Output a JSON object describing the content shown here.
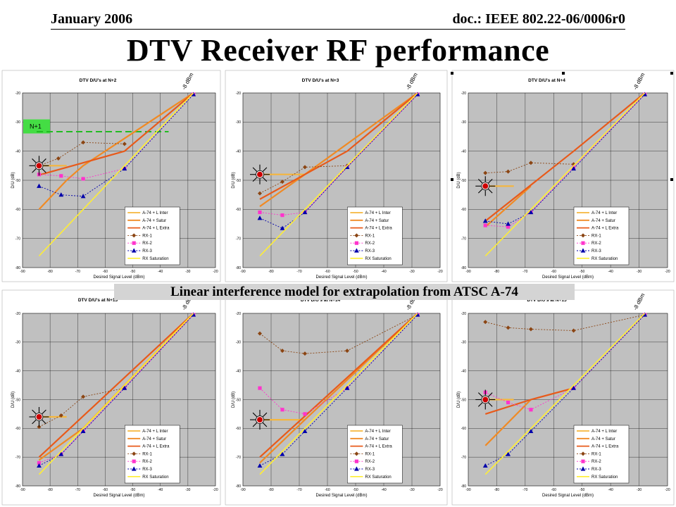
{
  "header": {
    "date": "January 2006",
    "doc": "doc.: IEEE 802.22-06/0006r0"
  },
  "slide_title": "DTV Receiver RF performance",
  "banner": "Linear interference model for extrapolation from ATSC A-74",
  "colors": {
    "A-74 + L Inter": "#f5b63d",
    "A-74 + Satur": "#f08a24",
    "A-74 + L Extra": "#e85a1a",
    "RX-1": "#8b4513",
    "RX-2": "#ff33cc",
    "RX-3": "#0000aa",
    "RX Saturation": "#ffee33",
    "plot_bg": "#c0c0c0"
  },
  "chart_data": [
    {
      "type": "line",
      "title": "DTV D/U's at N+2",
      "xlabel": "Desired Signal Level (dBm)",
      "ylabel": "D/U (dB)",
      "xlim": [
        -90,
        -20
      ],
      "ylim": [
        -80,
        -20
      ],
      "xticks": [
        -90,
        -80,
        -70,
        -60,
        -50,
        -40,
        -30,
        -20
      ],
      "yticks": [
        -20,
        -30,
        -40,
        -50,
        -60,
        -70,
        -80
      ],
      "grid": true,
      "legend": "bottom-right",
      "point_label": "-8 dBm",
      "extra_label": "N+1",
      "series": [
        {
          "name": "A-74 + L Inter",
          "x": [
            -84,
            -74
          ],
          "y": [
            -45,
            -45
          ]
        },
        {
          "name": "A-74 + Satur",
          "x": [
            -84,
            -74,
            -68,
            -28
          ],
          "y": [
            -60,
            -50,
            -45,
            -20
          ]
        },
        {
          "name": "A-74 + L Extra",
          "x": [
            -84,
            -68,
            -53,
            -28
          ],
          "y": [
            -48.2,
            -44,
            -40,
            -20
          ]
        },
        {
          "name": "RX-1",
          "x": [
            -84,
            -77,
            -68,
            -53
          ],
          "y": [
            -45,
            -42.5,
            -37,
            -37.5
          ]
        },
        {
          "name": "RX-2",
          "x": [
            -84,
            -76,
            -68,
            -53,
            -28
          ],
          "y": [
            -48,
            -48.5,
            -49.5,
            -46,
            -20.5
          ]
        },
        {
          "name": "RX-3",
          "x": [
            -84,
            -76,
            -68,
            -53,
            -28
          ],
          "y": [
            -52,
            -55,
            -55.5,
            -46,
            -20.5
          ]
        },
        {
          "name": "RX Saturation",
          "x": [
            -84,
            -28
          ],
          "y": [
            -76,
            -20
          ]
        }
      ]
    },
    {
      "type": "line",
      "title": "DTV D/U's at N+3",
      "xlabel": "Desired Signal Level (dBm)",
      "ylabel": "D/U (dB)",
      "xlim": [
        -90,
        -20
      ],
      "ylim": [
        -80,
        -20
      ],
      "xticks": [
        -90,
        -80,
        -70,
        -60,
        -50,
        -40,
        -30,
        -20
      ],
      "yticks": [
        -20,
        -30,
        -40,
        -50,
        -60,
        -70,
        -80
      ],
      "grid": true,
      "legend": "bottom-right",
      "point_label": "-8 dBm",
      "series": [
        {
          "name": "A-74 + L Inter",
          "x": [
            -84,
            -68
          ],
          "y": [
            -48,
            -48
          ]
        },
        {
          "name": "A-74 + Satur",
          "x": [
            -84,
            -68,
            -28
          ],
          "y": [
            -59,
            -48,
            -20
          ]
        },
        {
          "name": "A-74 + L Extra",
          "x": [
            -84,
            -68,
            -53,
            -28
          ],
          "y": [
            -56.5,
            -48,
            -40,
            -20
          ]
        },
        {
          "name": "RX-1",
          "x": [
            -84,
            -76,
            -68,
            -53
          ],
          "y": [
            -54.5,
            -50.5,
            -45.5,
            -45
          ]
        },
        {
          "name": "RX-2",
          "x": [
            -84,
            -76,
            -68,
            -53,
            -28
          ],
          "y": [
            -61,
            -62,
            -61,
            -45.5,
            -20.5
          ]
        },
        {
          "name": "RX-3",
          "x": [
            -84,
            -76,
            -68,
            -53,
            -28
          ],
          "y": [
            -63,
            -66.5,
            -61,
            -45.5,
            -20.5
          ]
        },
        {
          "name": "RX Saturation",
          "x": [
            -84,
            -28
          ],
          "y": [
            -76,
            -20
          ]
        }
      ]
    },
    {
      "type": "line",
      "title": "DTV D/U's at N+4",
      "xlabel": "Desired Signal Level (dBm)",
      "ylabel": "D/U (dB)",
      "xlim": [
        -90,
        -20
      ],
      "ylim": [
        -80,
        -20
      ],
      "xticks": [
        -90,
        -80,
        -70,
        -60,
        -50,
        -40,
        -30,
        -20
      ],
      "yticks": [
        -20,
        -30,
        -40,
        -50,
        -60,
        -70,
        -80
      ],
      "grid": true,
      "legend": "bottom-right",
      "point_label": "-8 dBm",
      "series": [
        {
          "name": "A-74 + L Inter",
          "x": [
            -84,
            -74
          ],
          "y": [
            -52,
            -52
          ]
        },
        {
          "name": "A-74 + Satur",
          "x": [
            -84,
            -68
          ],
          "y": [
            -66,
            -52
          ]
        },
        {
          "name": "A-74 + L Extra",
          "x": [
            -84,
            -53,
            -28
          ],
          "y": [
            -64,
            -40,
            -20
          ]
        },
        {
          "name": "RX-1",
          "x": [
            -84,
            -76,
            -68,
            -53
          ],
          "y": [
            -47.5,
            -47,
            -44,
            -44.5
          ]
        },
        {
          "name": "RX-2",
          "x": [
            -84,
            -76,
            -68,
            -53,
            -28
          ],
          "y": [
            -65.5,
            -66,
            -61,
            -45.5,
            -20.5
          ]
        },
        {
          "name": "RX-3",
          "x": [
            -84,
            -76,
            -68,
            -53,
            -28
          ],
          "y": [
            -64,
            -65,
            -61,
            -46,
            -20.5
          ]
        },
        {
          "name": "RX Saturation",
          "x": [
            -84,
            -28
          ],
          "y": [
            -76,
            -20
          ]
        }
      ]
    },
    {
      "type": "line",
      "title": "DTV D/U's at N+13",
      "xlabel": "Desired Signal Level (dBm)",
      "ylabel": "D/U (dB)",
      "xlim": [
        -90,
        -20
      ],
      "ylim": [
        -80,
        -20
      ],
      "xticks": [
        -90,
        -80,
        -70,
        -60,
        -50,
        -40,
        -30,
        -20
      ],
      "yticks": [
        -20,
        -30,
        -40,
        -50,
        -60,
        -70,
        -80
      ],
      "grid": true,
      "legend": "bottom-right",
      "point_label": "-8 dBm",
      "series": [
        {
          "name": "A-74 + L Inter",
          "x": [
            -84,
            -74
          ],
          "y": [
            -56,
            -56
          ]
        },
        {
          "name": "A-74 + Satur",
          "x": [
            -84,
            -68,
            -28
          ],
          "y": [
            -71,
            -60,
            -20
          ]
        },
        {
          "name": "A-74 + L Extra",
          "x": [
            -84,
            -28
          ],
          "y": [
            -70,
            -20
          ]
        },
        {
          "name": "RX-1",
          "x": [
            -84,
            -76,
            -68,
            -53
          ],
          "y": [
            -59.5,
            -55.5,
            -49,
            -46
          ]
        },
        {
          "name": "RX-2",
          "x": [
            -84,
            -76,
            -68,
            -53,
            -28
          ],
          "y": [
            -72,
            -69,
            -61,
            -46,
            -20.5
          ]
        },
        {
          "name": "RX-3",
          "x": [
            -84,
            -76,
            -68,
            -53,
            -28
          ],
          "y": [
            -73,
            -69,
            -61,
            -46,
            -20.5
          ]
        },
        {
          "name": "RX Saturation",
          "x": [
            -84,
            -28
          ],
          "y": [
            -76,
            -20
          ]
        }
      ]
    },
    {
      "type": "line",
      "title": "DTV D/U's at N+14",
      "xlabel": "Desired Signal Level (dBm)",
      "ylabel": "D/U (dB)",
      "xlim": [
        -90,
        -20
      ],
      "ylim": [
        -80,
        -20
      ],
      "xticks": [
        -90,
        -80,
        -70,
        -60,
        -50,
        -40,
        -30,
        -20
      ],
      "yticks": [
        -20,
        -30,
        -40,
        -50,
        -60,
        -70,
        -80
      ],
      "grid": true,
      "legend": "bottom-right",
      "point_label": "-8 dBm",
      "series": [
        {
          "name": "A-74 + L Inter",
          "x": [
            -84,
            -68
          ],
          "y": [
            -57,
            -57
          ]
        },
        {
          "name": "A-74 + Satur",
          "x": [
            -84,
            -68,
            -28
          ],
          "y": [
            -72,
            -57,
            -20
          ]
        },
        {
          "name": "A-74 + L Extra",
          "x": [
            -84,
            -28
          ],
          "y": [
            -70,
            -20
          ]
        },
        {
          "name": "RX-1",
          "x": [
            -84,
            -76,
            -68,
            -53,
            -28
          ],
          "y": [
            -27,
            -33,
            -34,
            -33,
            -20.5
          ]
        },
        {
          "name": "RX-2",
          "x": [
            -84,
            -76,
            -68,
            -53,
            -28
          ],
          "y": [
            -46,
            -53.5,
            -55,
            -46,
            -20.5
          ]
        },
        {
          "name": "RX-3",
          "x": [
            -84,
            -76,
            -68,
            -53,
            -28
          ],
          "y": [
            -73,
            -69,
            -61,
            -46,
            -20.5
          ]
        },
        {
          "name": "RX Saturation",
          "x": [
            -84,
            -28
          ],
          "y": [
            -76,
            -20
          ]
        }
      ]
    },
    {
      "type": "line",
      "title": "DTV D/U's at N+15",
      "xlabel": "Desired Signal Level (dBm)",
      "ylabel": "D/U (dB)",
      "xlim": [
        -90,
        -20
      ],
      "ylim": [
        -80,
        -20
      ],
      "xticks": [
        -90,
        -80,
        -70,
        -60,
        -50,
        -40,
        -30,
        -20
      ],
      "yticks": [
        -20,
        -30,
        -40,
        -50,
        -60,
        -70,
        -80
      ],
      "grid": true,
      "legend": "bottom-right",
      "point_label": "-8 dBm",
      "series": [
        {
          "name": "A-74 + L Inter",
          "x": [
            -84,
            -74
          ],
          "y": [
            -50,
            -50
          ]
        },
        {
          "name": "A-74 + Satur",
          "x": [
            -84,
            -68
          ],
          "y": [
            -66,
            -50
          ]
        },
        {
          "name": "A-74 + L Extra",
          "x": [
            -84,
            -68,
            -53
          ],
          "y": [
            -55,
            -50,
            -46
          ]
        },
        {
          "name": "RX-1",
          "x": [
            -84,
            -76,
            -68,
            -53,
            -28
          ],
          "y": [
            -23,
            -25,
            -25.5,
            -26,
            -20.5
          ]
        },
        {
          "name": "RX-2",
          "x": [
            -84,
            -76,
            -68,
            -53,
            -28
          ],
          "y": [
            -47.5,
            -51,
            -53.5,
            -46,
            -20.5
          ]
        },
        {
          "name": "RX-3",
          "x": [
            -84,
            -76,
            -68,
            -53,
            -28
          ],
          "y": [
            -73,
            -69,
            -61,
            -46,
            -20.5
          ]
        },
        {
          "name": "RX Saturation",
          "x": [
            -84,
            -28
          ],
          "y": [
            -76,
            -20
          ]
        }
      ]
    }
  ]
}
